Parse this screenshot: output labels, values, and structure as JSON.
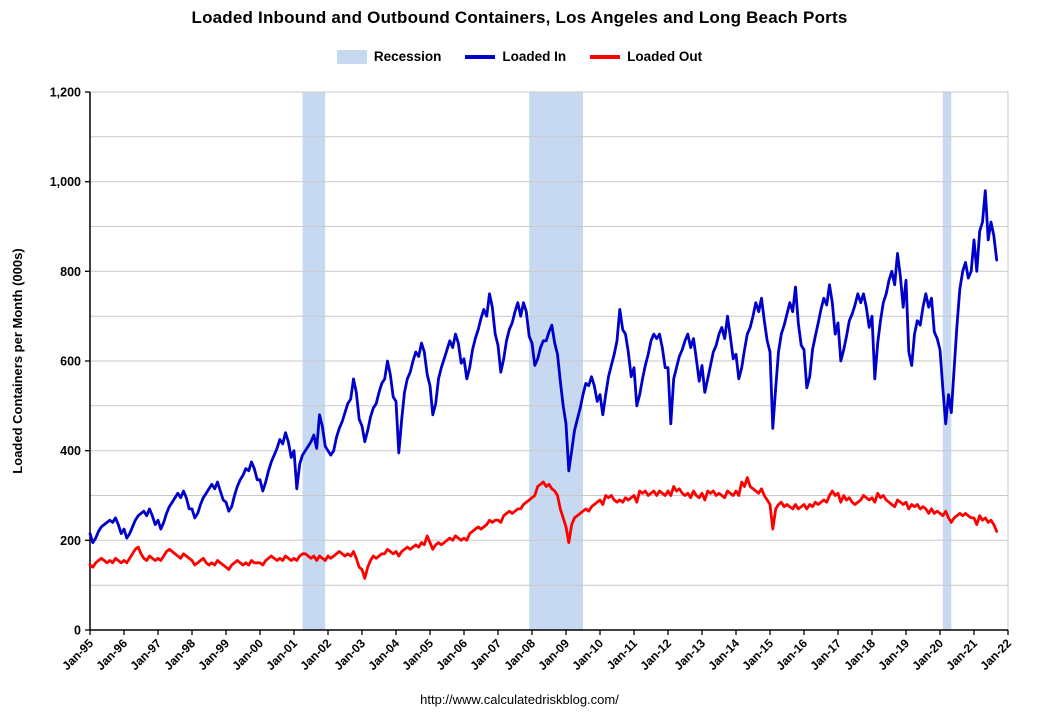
{
  "page": {
    "title": "Loaded Inbound and Outbound Containers, Los Angeles and Long Beach Ports",
    "footer_url": "http://www.calculatedriskblog.com/"
  },
  "legend": {
    "recession": "Recession",
    "loaded_in": "Loaded In",
    "loaded_out": "Loaded Out"
  },
  "colors": {
    "loaded_in": "#0000CC",
    "loaded_out": "#FF0000",
    "recession": "#C6D9F1",
    "grid": "#C9C9C9",
    "axis": "#000000"
  },
  "chart_data": {
    "type": "line",
    "title": "Loaded Inbound and Outbound Containers, Los Angeles and Long Beach Ports",
    "xlabel": "",
    "ylabel": "Loaded Containers per Month (000s)",
    "ylim": [
      0,
      1200
    ],
    "ytick_step": 200,
    "grid_step": 100,
    "grid": true,
    "legend_position": "top",
    "x_start": "1995-01",
    "x_end_axis": "2022-01",
    "x_tick_labels": [
      "Jan-95",
      "Jan-96",
      "Jan-97",
      "Jan-98",
      "Jan-99",
      "Jan-00",
      "Jan-01",
      "Jan-02",
      "Jan-03",
      "Jan-04",
      "Jan-05",
      "Jan-06",
      "Jan-07",
      "Jan-08",
      "Jan-09",
      "Jan-10",
      "Jan-11",
      "Jan-12",
      "Jan-13",
      "Jan-14",
      "Jan-15",
      "Jan-16",
      "Jan-17",
      "Jan-18",
      "Jan-19",
      "Jan-20",
      "Jan-21",
      "Jan-22"
    ],
    "recessions": [
      {
        "start": "2001-04",
        "end": "2001-11"
      },
      {
        "start": "2007-12",
        "end": "2009-06"
      },
      {
        "start": "2020-02",
        "end": "2020-04"
      }
    ],
    "series": [
      {
        "name": "Loaded In",
        "color": "#0000CC",
        "values": [
          215,
          195,
          205,
          220,
          230,
          235,
          240,
          245,
          240,
          250,
          235,
          215,
          225,
          205,
          215,
          230,
          245,
          255,
          260,
          265,
          255,
          270,
          255,
          235,
          245,
          225,
          240,
          260,
          275,
          285,
          295,
          305,
          295,
          310,
          295,
          270,
          270,
          250,
          260,
          280,
          295,
          305,
          315,
          325,
          315,
          330,
          310,
          290,
          285,
          265,
          275,
          300,
          320,
          335,
          345,
          360,
          355,
          375,
          360,
          335,
          335,
          310,
          330,
          355,
          375,
          390,
          405,
          425,
          415,
          440,
          420,
          385,
          400,
          315,
          370,
          390,
          400,
          410,
          420,
          435,
          405,
          480,
          455,
          410,
          400,
          390,
          400,
          430,
          450,
          465,
          485,
          505,
          515,
          560,
          530,
          470,
          455,
          420,
          445,
          475,
          495,
          505,
          530,
          550,
          560,
          600,
          570,
          520,
          510,
          395,
          470,
          530,
          560,
          575,
          600,
          620,
          610,
          640,
          620,
          570,
          545,
          480,
          505,
          560,
          585,
          605,
          625,
          645,
          630,
          660,
          640,
          595,
          605,
          560,
          585,
          625,
          650,
          670,
          695,
          715,
          700,
          750,
          720,
          660,
          635,
          575,
          605,
          645,
          670,
          685,
          710,
          730,
          700,
          730,
          710,
          655,
          640,
          590,
          605,
          630,
          645,
          645,
          665,
          680,
          640,
          615,
          555,
          500,
          460,
          355,
          400,
          445,
          470,
          495,
          525,
          550,
          545,
          565,
          545,
          510,
          525,
          480,
          525,
          565,
          590,
          615,
          645,
          715,
          670,
          660,
          620,
          565,
          585,
          500,
          525,
          560,
          590,
          615,
          645,
          660,
          650,
          660,
          630,
          585,
          585,
          460,
          560,
          585,
          610,
          625,
          645,
          660,
          630,
          650,
          605,
          555,
          590,
          530,
          560,
          590,
          620,
          635,
          660,
          675,
          650,
          700,
          655,
          605,
          615,
          560,
          585,
          625,
          660,
          675,
          700,
          730,
          710,
          740,
          690,
          645,
          620,
          450,
          540,
          620,
          660,
          680,
          705,
          730,
          710,
          765,
          685,
          635,
          625,
          540,
          565,
          625,
          655,
          685,
          715,
          740,
          725,
          770,
          730,
          660,
          685,
          600,
          625,
          655,
          690,
          705,
          725,
          750,
          730,
          750,
          720,
          675,
          700,
          560,
          640,
          690,
          730,
          750,
          780,
          800,
          770,
          840,
          790,
          720,
          780,
          620,
          590,
          660,
          690,
          680,
          720,
          750,
          720,
          740,
          665,
          650,
          625,
          540,
          460,
          525,
          485,
          585,
          680,
          760,
          800,
          820,
          785,
          800,
          870,
          800,
          890,
          910,
          980,
          870,
          910,
          880,
          825
        ]
      },
      {
        "name": "Loaded Out",
        "color": "#FF0000",
        "values": [
          145,
          140,
          150,
          155,
          160,
          155,
          150,
          155,
          150,
          160,
          155,
          150,
          155,
          150,
          160,
          170,
          180,
          185,
          170,
          160,
          155,
          165,
          160,
          155,
          160,
          155,
          165,
          175,
          180,
          175,
          170,
          165,
          160,
          170,
          165,
          160,
          155,
          145,
          150,
          155,
          160,
          150,
          145,
          150,
          145,
          155,
          150,
          145,
          140,
          135,
          145,
          150,
          155,
          150,
          145,
          150,
          145,
          155,
          150,
          150,
          150,
          145,
          155,
          160,
          165,
          160,
          155,
          160,
          155,
          165,
          160,
          155,
          160,
          155,
          165,
          170,
          170,
          165,
          160,
          165,
          155,
          165,
          160,
          155,
          165,
          160,
          165,
          170,
          175,
          170,
          165,
          170,
          165,
          175,
          160,
          140,
          135,
          115,
          140,
          155,
          165,
          160,
          165,
          170,
          170,
          180,
          175,
          170,
          175,
          165,
          175,
          180,
          185,
          180,
          185,
          190,
          185,
          195,
          190,
          210,
          195,
          180,
          190,
          195,
          190,
          195,
          200,
          205,
          200,
          210,
          205,
          200,
          205,
          200,
          215,
          220,
          225,
          230,
          225,
          230,
          235,
          245,
          240,
          245,
          245,
          240,
          255,
          260,
          265,
          260,
          265,
          270,
          270,
          280,
          285,
          290,
          295,
          300,
          320,
          325,
          330,
          320,
          325,
          315,
          310,
          300,
          270,
          250,
          230,
          195,
          235,
          250,
          255,
          260,
          265,
          270,
          265,
          275,
          280,
          285,
          290,
          280,
          300,
          295,
          300,
          290,
          285,
          290,
          285,
          295,
          290,
          295,
          300,
          285,
          310,
          305,
          310,
          300,
          305,
          310,
          300,
          310,
          305,
          300,
          310,
          300,
          320,
          310,
          315,
          305,
          300,
          305,
          295,
          310,
          300,
          295,
          305,
          290,
          310,
          305,
          310,
          300,
          305,
          300,
          295,
          310,
          305,
          300,
          310,
          300,
          330,
          320,
          340,
          320,
          315,
          310,
          305,
          315,
          300,
          290,
          280,
          225,
          270,
          280,
          285,
          275,
          280,
          275,
          270,
          280,
          270,
          275,
          280,
          270,
          280,
          275,
          285,
          280,
          285,
          290,
          285,
          300,
          310,
          300,
          305,
          285,
          300,
          290,
          295,
          285,
          280,
          285,
          290,
          300,
          295,
          290,
          295,
          285,
          305,
          295,
          300,
          290,
          285,
          280,
          275,
          290,
          285,
          280,
          285,
          270,
          280,
          275,
          280,
          270,
          275,
          270,
          260,
          270,
          260,
          265,
          260,
          255,
          265,
          250,
          240,
          250,
          255,
          260,
          255,
          260,
          255,
          250,
          250,
          235,
          255,
          245,
          250,
          240,
          245,
          235,
          220
        ]
      }
    ]
  }
}
